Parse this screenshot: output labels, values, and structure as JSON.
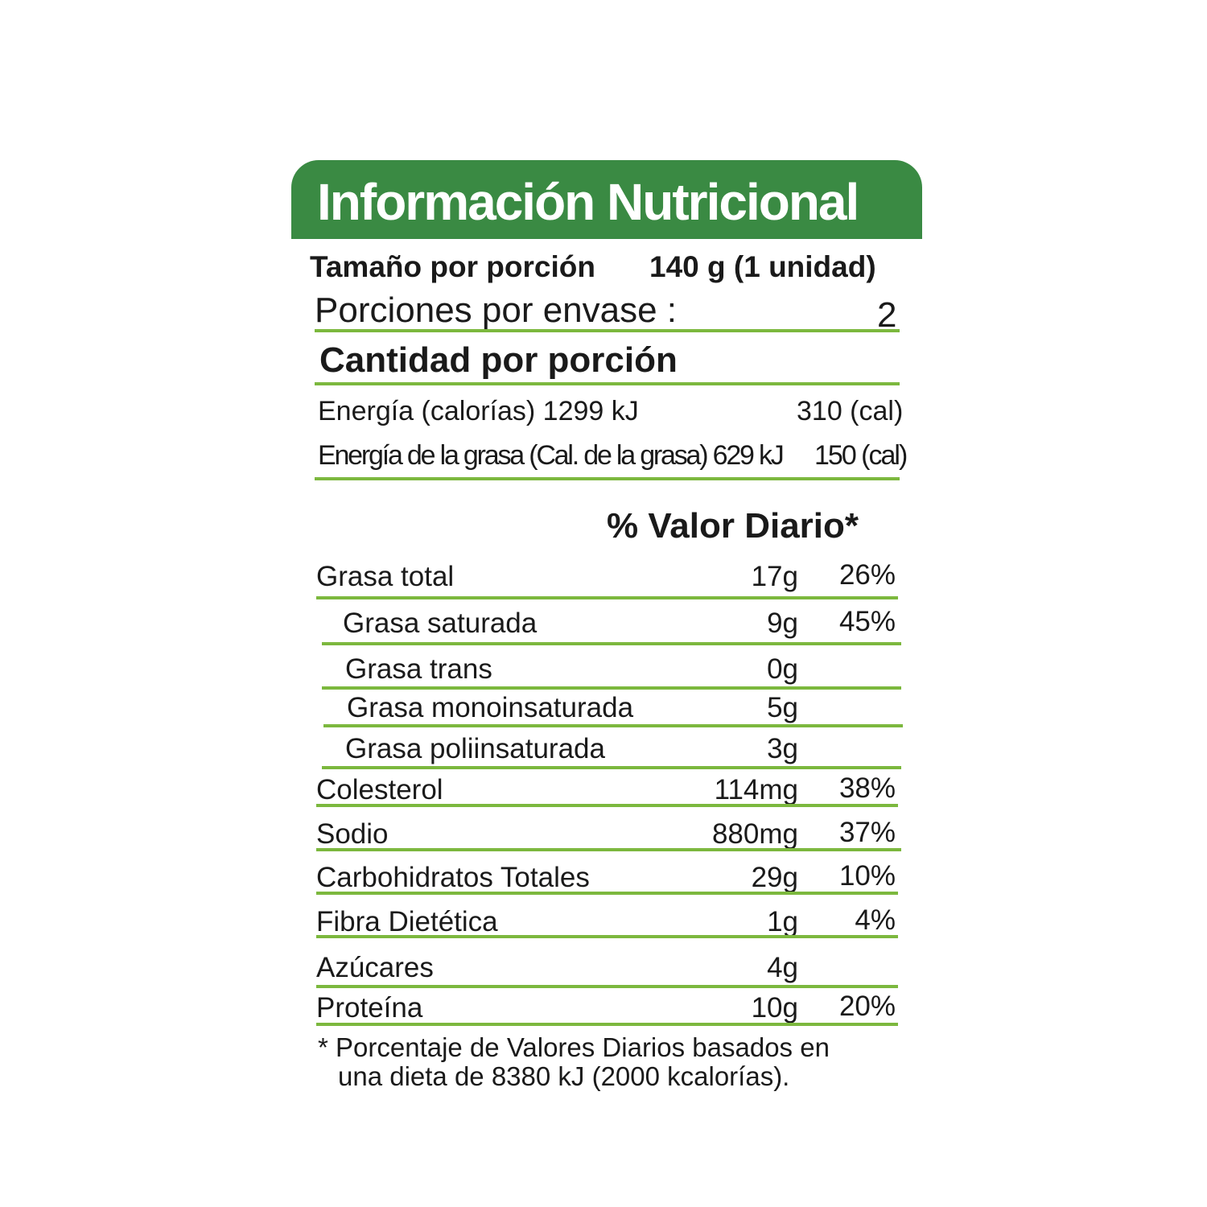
{
  "title": "Información Nutricional",
  "serving": {
    "label": "Tamaño por porción",
    "value": "140 g (1 unidad)"
  },
  "servings_per_container": {
    "label": "Porciones por envase :",
    "value": "2"
  },
  "amount_per_serving": "Cantidad por porción",
  "energy": {
    "label": "Energía (calorías) 1299 kJ",
    "value": "310 (cal)"
  },
  "fat_energy": {
    "label": "Energía de la grasa (Cal. de la grasa) 629 kJ",
    "value": "150 (cal)"
  },
  "daily_value_header": "% Valor Diario*",
  "nutrients": [
    {
      "name": "Grasa total",
      "amount": "17g",
      "dv": "26%"
    },
    {
      "name": "Grasa saturada",
      "amount": "9g",
      "dv": "45%"
    },
    {
      "name": "Grasa trans",
      "amount": "0g",
      "dv": ""
    },
    {
      "name": "Grasa monoinsaturada",
      "amount": "5g",
      "dv": ""
    },
    {
      "name": "Grasa poliinsaturada",
      "amount": "3g",
      "dv": ""
    },
    {
      "name": "Colesterol",
      "amount": "114mg",
      "dv": "38%"
    },
    {
      "name": "Sodio",
      "amount": "880mg",
      "dv": "37%"
    },
    {
      "name": "Carbohidratos Totales",
      "amount": "29g",
      "dv": "10%"
    },
    {
      "name": "Fibra Dietética",
      "amount": "1g",
      "dv": "4%"
    },
    {
      "name": "Azúcares",
      "amount": "4g",
      "dv": ""
    },
    {
      "name": "Proteína",
      "amount": "10g",
      "dv": "20%"
    }
  ],
  "footnote": [
    "* Porcentaje de Valores Diarios basados en",
    "una dieta de 8380 kJ (2000 kcalorías)."
  ],
  "colors": {
    "header": "#3a8a43",
    "rule": "#7cb83e",
    "text": "#1a1a1a"
  }
}
